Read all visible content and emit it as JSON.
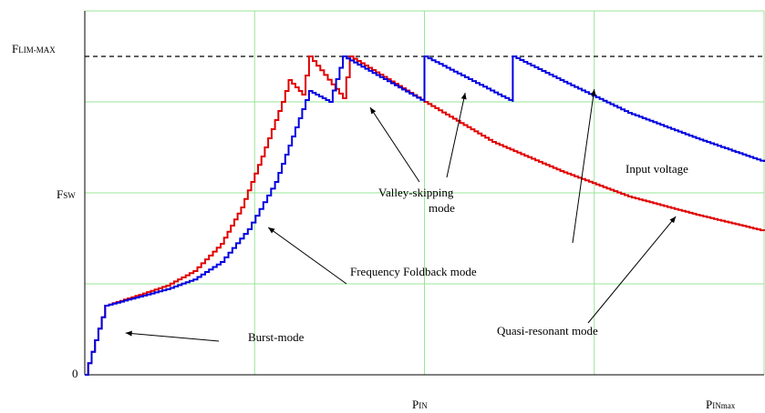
{
  "chart_data": {
    "type": "line",
    "title": "",
    "xlabel": "PIN",
    "ylabel": "Fsw",
    "x_tick_labels": [
      "PIN",
      "PINmax"
    ],
    "y_tick_labels": [
      "0",
      "Fsw",
      "FLIM-MAX"
    ],
    "xlim": [
      0,
      1
    ],
    "ylim": [
      0,
      1
    ],
    "grid": true,
    "grid_color": "#99e699",
    "limit_line": {
      "value": 0.875,
      "style": "dashed",
      "color": "#000000"
    },
    "series": [
      {
        "color": "#e00000",
        "points": [
          [
            0,
            0
          ],
          [
            0.03,
            0.19
          ],
          [
            0.08,
            0.22
          ],
          [
            0.12,
            0.245
          ],
          [
            0.16,
            0.285
          ],
          [
            0.2,
            0.36
          ],
          [
            0.23,
            0.46
          ],
          [
            0.26,
            0.6
          ],
          [
            0.29,
            0.75
          ],
          [
            0.3,
            0.81
          ],
          [
            0.32,
            0.77
          ],
          [
            0.33,
            0.875
          ],
          [
            0.38,
            0.76
          ],
          [
            0.39,
            0.875
          ],
          [
            0.5,
            0.75
          ],
          [
            0.6,
            0.64
          ],
          [
            0.7,
            0.56
          ],
          [
            0.8,
            0.49
          ],
          [
            0.9,
            0.44
          ],
          [
            1.0,
            0.395
          ]
        ]
      },
      {
        "color": "#0000e0",
        "points": [
          [
            0,
            0
          ],
          [
            0.03,
            0.19
          ],
          [
            0.08,
            0.215
          ],
          [
            0.12,
            0.235
          ],
          [
            0.16,
            0.262
          ],
          [
            0.2,
            0.31
          ],
          [
            0.24,
            0.4
          ],
          [
            0.28,
            0.53
          ],
          [
            0.31,
            0.68
          ],
          [
            0.33,
            0.78
          ],
          [
            0.36,
            0.75
          ],
          [
            0.38,
            0.875
          ],
          [
            0.5,
            0.75
          ],
          [
            0.5,
            0.875
          ],
          [
            0.63,
            0.75
          ],
          [
            0.63,
            0.875
          ],
          [
            0.7,
            0.81
          ],
          [
            0.8,
            0.72
          ],
          [
            0.9,
            0.65
          ],
          [
            1.0,
            0.585
          ]
        ]
      }
    ],
    "annotations": [
      {
        "text": "Burst-mode",
        "target": [
          0.06,
          0.115
        ]
      },
      {
        "text": "Frequency Foldback mode",
        "target": [
          0.27,
          0.405
        ]
      },
      {
        "text": "Valley-skipping",
        "text2": "mode",
        "target": [
          0.42,
          0.735
        ],
        "target2": [
          0.56,
          0.775
        ]
      },
      {
        "text": "Input voltage",
        "target": [
          0.75,
          0.785
        ]
      },
      {
        "text": "Quasi-resonant mode",
        "target": [
          0.87,
          0.435
        ]
      }
    ]
  }
}
